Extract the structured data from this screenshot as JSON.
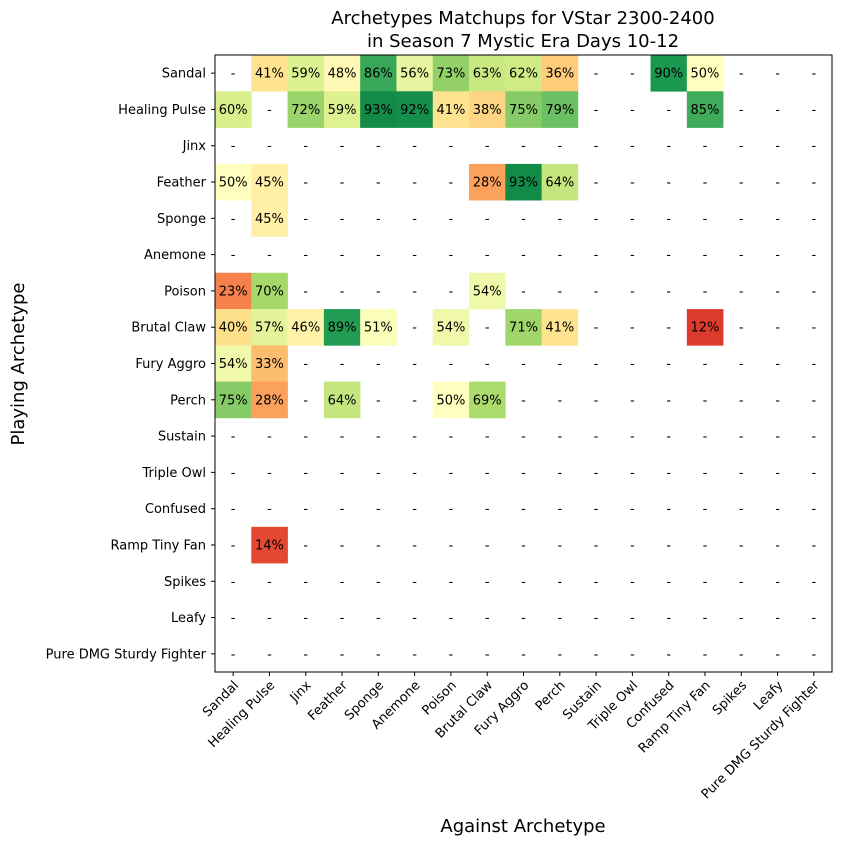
{
  "chart_data": {
    "type": "heatmap",
    "title_lines": [
      "Archetypes Matchups for VStar 2300-2400",
      "in Season 7 Mystic Era Days 10-12"
    ],
    "xlabel": "Against Archetype",
    "ylabel": "Playing Archetype",
    "rows": [
      "Sandal",
      "Healing Pulse",
      "Jinx",
      "Feather",
      "Sponge",
      "Anemone",
      "Poison",
      "Brutal Claw",
      "Fury Aggro",
      "Perch",
      "Sustain",
      "Triple Owl",
      "Confused",
      "Ramp Tiny Fan",
      "Spikes",
      "Leafy",
      "Pure DMG Sturdy Fighter"
    ],
    "columns": [
      "Sandal",
      "Healing Pulse",
      "Jinx",
      "Feather",
      "Sponge",
      "Anemone",
      "Poison",
      "Brutal Claw",
      "Fury Aggro",
      "Perch",
      "Sustain",
      "Triple Owl",
      "Confused",
      "Ramp Tiny Fan",
      "Spikes",
      "Leafy",
      "Pure DMG Sturdy Fighter"
    ],
    "missing_label": "-",
    "value_suffix": "%",
    "values": [
      [
        null,
        41,
        59,
        48,
        86,
        56,
        73,
        63,
        62,
        36,
        null,
        null,
        90,
        50,
        null,
        null,
        null
      ],
      [
        60,
        null,
        72,
        59,
        93,
        92,
        41,
        38,
        75,
        79,
        null,
        null,
        null,
        85,
        null,
        null,
        null
      ],
      [
        null,
        null,
        null,
        null,
        null,
        null,
        null,
        null,
        null,
        null,
        null,
        null,
        null,
        null,
        null,
        null,
        null
      ],
      [
        50,
        45,
        null,
        null,
        null,
        null,
        null,
        28,
        93,
        64,
        null,
        null,
        null,
        null,
        null,
        null,
        null
      ],
      [
        null,
        45,
        null,
        null,
        null,
        null,
        null,
        null,
        null,
        null,
        null,
        null,
        null,
        null,
        null,
        null,
        null
      ],
      [
        null,
        null,
        null,
        null,
        null,
        null,
        null,
        null,
        null,
        null,
        null,
        null,
        null,
        null,
        null,
        null,
        null
      ],
      [
        23,
        70,
        null,
        null,
        null,
        null,
        null,
        54,
        null,
        null,
        null,
        null,
        null,
        null,
        null,
        null,
        null
      ],
      [
        40,
        57,
        46,
        89,
        51,
        null,
        54,
        null,
        71,
        41,
        null,
        null,
        null,
        12,
        null,
        null,
        null
      ],
      [
        54,
        33,
        null,
        null,
        null,
        null,
        null,
        null,
        null,
        null,
        null,
        null,
        null,
        null,
        null,
        null,
        null
      ],
      [
        75,
        28,
        null,
        64,
        null,
        null,
        50,
        69,
        null,
        null,
        null,
        null,
        null,
        null,
        null,
        null,
        null
      ],
      [
        null,
        null,
        null,
        null,
        null,
        null,
        null,
        null,
        null,
        null,
        null,
        null,
        null,
        null,
        null,
        null,
        null
      ],
      [
        null,
        null,
        null,
        null,
        null,
        null,
        null,
        null,
        null,
        null,
        null,
        null,
        null,
        null,
        null,
        null,
        null
      ],
      [
        null,
        null,
        null,
        null,
        null,
        null,
        null,
        null,
        null,
        null,
        null,
        null,
        null,
        null,
        null,
        null,
        null
      ],
      [
        null,
        14,
        null,
        null,
        null,
        null,
        null,
        null,
        null,
        null,
        null,
        null,
        null,
        null,
        null,
        null,
        null
      ],
      [
        null,
        null,
        null,
        null,
        null,
        null,
        null,
        null,
        null,
        null,
        null,
        null,
        null,
        null,
        null,
        null,
        null
      ],
      [
        null,
        null,
        null,
        null,
        null,
        null,
        null,
        null,
        null,
        null,
        null,
        null,
        null,
        null,
        null,
        null,
        null
      ],
      [
        null,
        null,
        null,
        null,
        null,
        null,
        null,
        null,
        null,
        null,
        null,
        null,
        null,
        null,
        null,
        null,
        null
      ]
    ],
    "colormap": "RdYlGn",
    "vmin": 0,
    "vmax": 100
  }
}
